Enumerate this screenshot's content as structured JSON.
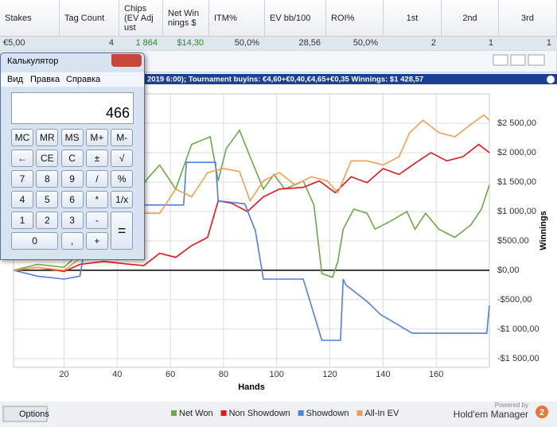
{
  "table": {
    "headers": [
      "Stakes",
      "Tag Count",
      "Chips (EV Adjust",
      "Net Winnings $",
      "ITM%",
      "EV bb/100",
      "ROI%",
      "1st",
      "2nd",
      "3rd"
    ],
    "row": [
      "€5,00",
      "4",
      "1 864",
      "$14,30",
      "50,0%",
      "28,56",
      "50,0%",
      "2",
      "1",
      "1"
    ]
  },
  "window": {
    "title": "2019 6:00); Tournament buyins: €4,60+€0,40,€4,65+€0,35 Winnings: $1 428,57"
  },
  "chart_data": {
    "type": "line",
    "x_label": "Hands",
    "y_label": "Winnings",
    "xlim": [
      1,
      180
    ],
    "xticks": [
      20,
      40,
      60,
      80,
      100,
      120,
      140,
      160
    ],
    "ylim": [
      -1650,
      3000
    ],
    "yticks": [
      {
        "value": 2500,
        "label": "$2 500,00"
      },
      {
        "value": 2000,
        "label": "$2 000,00"
      },
      {
        "value": 1500,
        "label": "$1 500,00"
      },
      {
        "value": 1000,
        "label": "$1 000,00"
      },
      {
        "value": 500,
        "label": "$500,00"
      },
      {
        "value": 0,
        "label": "$0,00"
      },
      {
        "value": -500,
        "label": "-$500,00"
      },
      {
        "value": -1000,
        "label": "-$1 000,00"
      },
      {
        "value": -1500,
        "label": "-$1 500,00"
      }
    ],
    "grid": true,
    "legend": "bottom",
    "series": [
      {
        "name": "Net Won",
        "color": "#6aaa44",
        "x": [
          1,
          10,
          20,
          26,
          35,
          45,
          52,
          56,
          62,
          68,
          75,
          78,
          81,
          86,
          90,
          95,
          99,
          103,
          110,
          114,
          117,
          121,
          123,
          125,
          129,
          134,
          137,
          143,
          149,
          152,
          156,
          161,
          167,
          173,
          177,
          180
        ],
        "values": [
          0,
          100,
          50,
          300,
          700,
          1200,
          1590,
          1790,
          1380,
          2140,
          2270,
          1520,
          2070,
          2380,
          1930,
          1380,
          1630,
          1380,
          1520,
          1110,
          -55,
          -120,
          150,
          700,
          1040,
          970,
          700,
          840,
          1000,
          700,
          970,
          700,
          560,
          770,
          1040,
          1450
        ]
      },
      {
        "name": "Non Showdown",
        "color": "#e8141b",
        "x": [
          1,
          10,
          20,
          26,
          35,
          45,
          50,
          56,
          62,
          68,
          74,
          78,
          83,
          89,
          95,
          101,
          110,
          116,
          122,
          128,
          134,
          140,
          146,
          152,
          158,
          164,
          170,
          176,
          180
        ],
        "values": [
          0,
          50,
          -20,
          100,
          150,
          100,
          80,
          290,
          220,
          420,
          560,
          1180,
          1140,
          1000,
          1250,
          1380,
          1410,
          1520,
          1320,
          1590,
          1490,
          1730,
          1630,
          1820,
          2000,
          1860,
          1930,
          2140,
          2000
        ]
      },
      {
        "name": "Showdown",
        "color": "#4f7fe0",
        "x": [
          1,
          10,
          20,
          26,
          30,
          40,
          50,
          60,
          65,
          66,
          77,
          78,
          88,
          92,
          95,
          110,
          117,
          124,
          125,
          126,
          134,
          139,
          151,
          179,
          180
        ],
        "values": [
          0,
          -100,
          -150,
          -100,
          1000,
          1110,
          1110,
          1110,
          1110,
          1835,
          1835,
          1180,
          1130,
          670,
          -150,
          -150,
          -1190,
          -1190,
          -150,
          -250,
          -530,
          -750,
          -1070,
          -1070,
          -600
        ]
      },
      {
        "name": "All-In EV",
        "color": "#f0a050",
        "x": [
          1,
          10,
          20,
          26,
          35,
          45,
          50,
          56,
          62,
          68,
          74,
          80,
          86,
          90,
          95,
          101,
          107,
          113,
          119,
          123,
          128,
          134,
          140,
          146,
          150,
          155,
          161,
          167,
          173,
          178,
          180
        ],
        "values": [
          0,
          50,
          0,
          200,
          500,
          800,
          970,
          970,
          1380,
          1250,
          1660,
          1730,
          1680,
          1180,
          1520,
          1660,
          1450,
          1590,
          1520,
          1320,
          1860,
          1860,
          1790,
          1930,
          2340,
          2550,
          2340,
          2270,
          2480,
          2640,
          2550
        ]
      }
    ]
  },
  "footer": {
    "options": "Options",
    "powered_by": "Powered by",
    "brand": "Hold'em Manager",
    "logo": "2"
  },
  "calculator": {
    "title": "Калькулятор",
    "menu": [
      "Вид",
      "Правка",
      "Справка"
    ],
    "display": "466",
    "buttons": [
      "MC",
      "MR",
      "MS",
      "M+",
      "M-",
      "←",
      "CE",
      "C",
      "±",
      "√",
      "7",
      "8",
      "9",
      "/",
      "%",
      "4",
      "5",
      "6",
      "*",
      "1/x",
      "1",
      "2",
      "3",
      "-",
      "=",
      "0",
      ",",
      "+"
    ]
  }
}
